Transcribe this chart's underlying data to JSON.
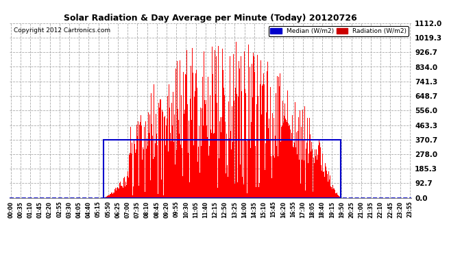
{
  "title": "Solar Radiation & Day Average per Minute (Today) 20120726",
  "copyright_text": "Copyright 2012 Cartronics.com",
  "yticks": [
    0.0,
    92.7,
    185.3,
    278.0,
    370.7,
    463.3,
    556.0,
    648.7,
    741.3,
    834.0,
    926.7,
    1019.3,
    1112.0
  ],
  "ymax": 1112.0,
  "ymin": 0.0,
  "background_color": "#ffffff",
  "grid_color": "#aaaaaa",
  "radiation_color": "#ff0000",
  "median_color": "#0000cc",
  "xtick_labels": [
    "00:00",
    "00:35",
    "01:10",
    "01:45",
    "02:20",
    "02:55",
    "03:30",
    "04:05",
    "04:40",
    "05:15",
    "05:50",
    "06:25",
    "07:00",
    "07:35",
    "08:10",
    "08:45",
    "09:20",
    "09:55",
    "10:30",
    "11:05",
    "11:40",
    "12:15",
    "12:50",
    "13:25",
    "14:00",
    "14:35",
    "15:10",
    "15:45",
    "16:20",
    "16:55",
    "17:30",
    "18:05",
    "18:40",
    "19:15",
    "19:50",
    "20:25",
    "21:00",
    "21:35",
    "22:10",
    "22:45",
    "23:20",
    "23:55"
  ],
  "num_minutes": 1440,
  "sunrise_minute": 335,
  "sunset_minute": 1190,
  "median_value": 370.7,
  "peak_radiation": 1112.0,
  "random_seed": 42
}
